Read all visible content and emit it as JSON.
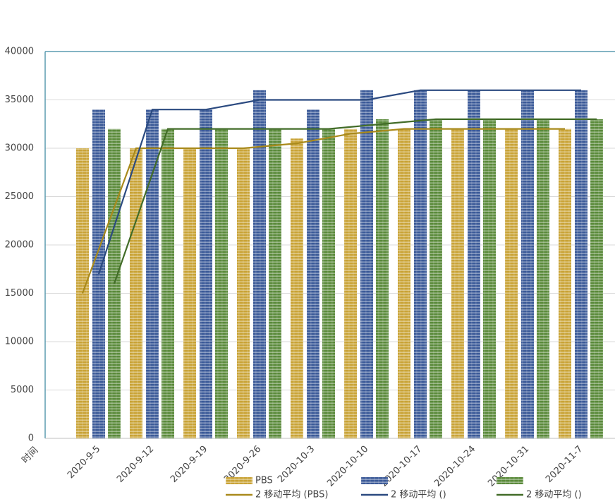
{
  "chart_data": {
    "type": "bar",
    "x_axis_label": "时间",
    "categories": [
      "2020-9-5",
      "2020-9-12",
      "2020-9-19",
      "2020-9-26",
      "2020-10-3",
      "2020-10-10",
      "2020-10-17",
      "2020-10-24",
      "2020-10-31",
      "2020-11-7"
    ],
    "series": [
      {
        "name": "PBS",
        "color": "#c9a336",
        "values": [
          30000,
          30000,
          30000,
          30000,
          31000,
          32000,
          32000,
          32000,
          32000,
          32000
        ]
      },
      {
        "color": "#3b5a98",
        "values": [
          34000,
          34000,
          34000,
          36000,
          34000,
          36000,
          36000,
          36000,
          36000,
          36000
        ]
      },
      {
        "color": "#5a8a3a",
        "values": [
          32000,
          32000,
          32000,
          32000,
          32000,
          33000,
          33000,
          33000,
          33000,
          33000
        ]
      }
    ],
    "trendlines": [
      {
        "name": "2 移动平均 (PBS)",
        "color": "#a98a1c",
        "values": [
          15000,
          30000,
          30000,
          30000,
          30500,
          31500,
          32000,
          32000,
          32000,
          32000
        ]
      },
      {
        "name": "2 移动平均 ()",
        "color": "#2b4a80",
        "values": [
          17000,
          34000,
          34000,
          35000,
          35000,
          35000,
          36000,
          36000,
          36000,
          36000
        ]
      },
      {
        "name": "2 移动平均 ()",
        "color": "#426c28",
        "values": [
          16000,
          32000,
          32000,
          32000,
          32000,
          32500,
          33000,
          33000,
          33000,
          33000
        ]
      }
    ],
    "ylim": [
      0,
      40000
    ],
    "yticks": [
      0,
      5000,
      10000,
      15000,
      20000,
      25000,
      30000,
      35000,
      40000
    ],
    "grid": true
  }
}
